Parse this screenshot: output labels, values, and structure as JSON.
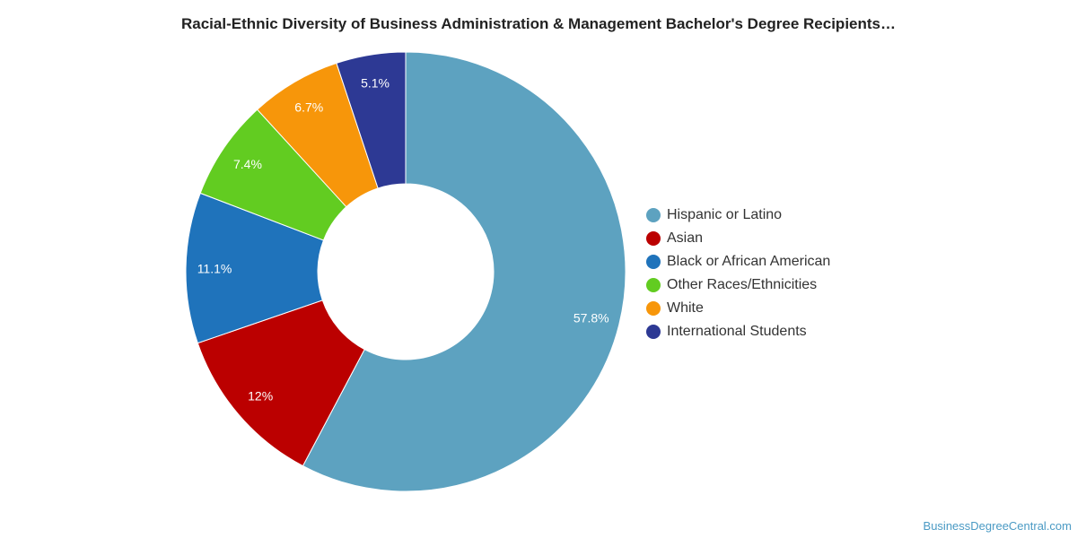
{
  "chart_data": {
    "type": "pie",
    "title": "Racial-Ethnic Diversity of Business Administration & Management Bachelor's Degree Recipients…",
    "categories": [
      "Hispanic or Latino",
      "Asian",
      "Black or African American",
      "Other Races/Ethnicities",
      "White",
      "International Students"
    ],
    "values": [
      57.8,
      12,
      11.1,
      7.4,
      6.7,
      5.1
    ],
    "value_labels": [
      "57.8%",
      "12%",
      "11.1%",
      "7.4%",
      "6.7%",
      "5.1%"
    ],
    "colors": [
      "#5da2c0",
      "#bb0000",
      "#1f73bb",
      "#62cc21",
      "#f7960a",
      "#2d3994"
    ],
    "donut": true,
    "legend_position": "right"
  },
  "credit": "BusinessDegreeCentral.com"
}
